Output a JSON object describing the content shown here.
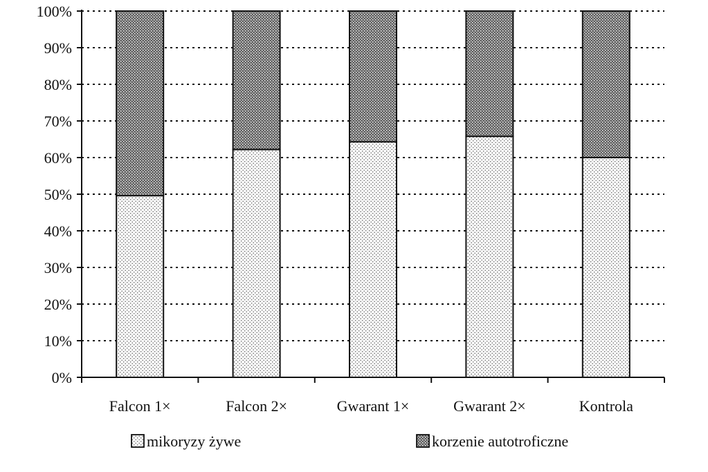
{
  "chart_data": {
    "type": "bar",
    "stacked": true,
    "percent": true,
    "categories": [
      "Falcon 1×",
      "Falcon 2×",
      "Gwarant 1×",
      "Gwarant 2×",
      "Kontrola"
    ],
    "series": [
      {
        "name": "mikoryzy żywe",
        "values": [
          49.6,
          62.2,
          64.3,
          65.8,
          60.0
        ],
        "pattern": "fine-dots"
      },
      {
        "name": "korzenie autotroficzne",
        "values": [
          50.4,
          37.8,
          35.7,
          34.2,
          40.0
        ],
        "pattern": "dense-dots"
      }
    ],
    "ylim": [
      0,
      100
    ],
    "yticks": [
      "0%",
      "10%",
      "20%",
      "30%",
      "40%",
      "50%",
      "60%",
      "70%",
      "80%",
      "90%",
      "100%"
    ],
    "grid": true,
    "legend_position": "bottom",
    "colors": {
      "line": "#111111",
      "fill_light": "#ffffff",
      "dot_light": "#555555",
      "fill_dark": "#9a9a9a",
      "dot_dark": "#3a3a3a"
    }
  }
}
